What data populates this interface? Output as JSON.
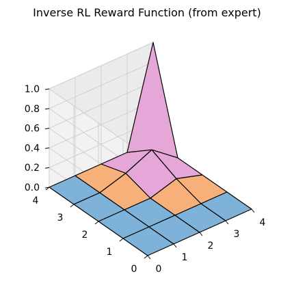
{
  "chart_data": {
    "type": "surface3d",
    "title": "Inverse RL Reward Function (from expert)",
    "xlabel": "",
    "ylabel": "",
    "zlabel": "",
    "x": [
      0,
      1,
      2,
      3,
      4
    ],
    "y": [
      0,
      1,
      2,
      3,
      4
    ],
    "xlim": [
      0,
      4
    ],
    "ylim": [
      0,
      4
    ],
    "zlim": [
      0,
      1
    ],
    "x_ticks": [
      "0",
      "1",
      "2",
      "3",
      "4"
    ],
    "y_ticks": [
      "0",
      "1",
      "2",
      "3",
      "4"
    ],
    "z_ticks": [
      "0.0",
      "0.2",
      "0.4",
      "0.6",
      "0.8",
      "1.0"
    ],
    "z_values": [
      [
        0,
        0,
        0,
        0,
        0
      ],
      [
        0,
        0,
        0,
        0,
        0
      ],
      [
        0,
        0,
        0,
        0.08,
        0
      ],
      [
        0,
        0,
        0.08,
        0.2,
        0
      ],
      [
        0,
        0,
        0,
        0,
        1.0
      ]
    ],
    "grid": true,
    "colors": {
      "low": "#7fb2d8",
      "mid_orange": "#f8b07a",
      "pink": "#e5a6d8",
      "cyan": "#7fd8e6",
      "edge": "#000000"
    }
  }
}
